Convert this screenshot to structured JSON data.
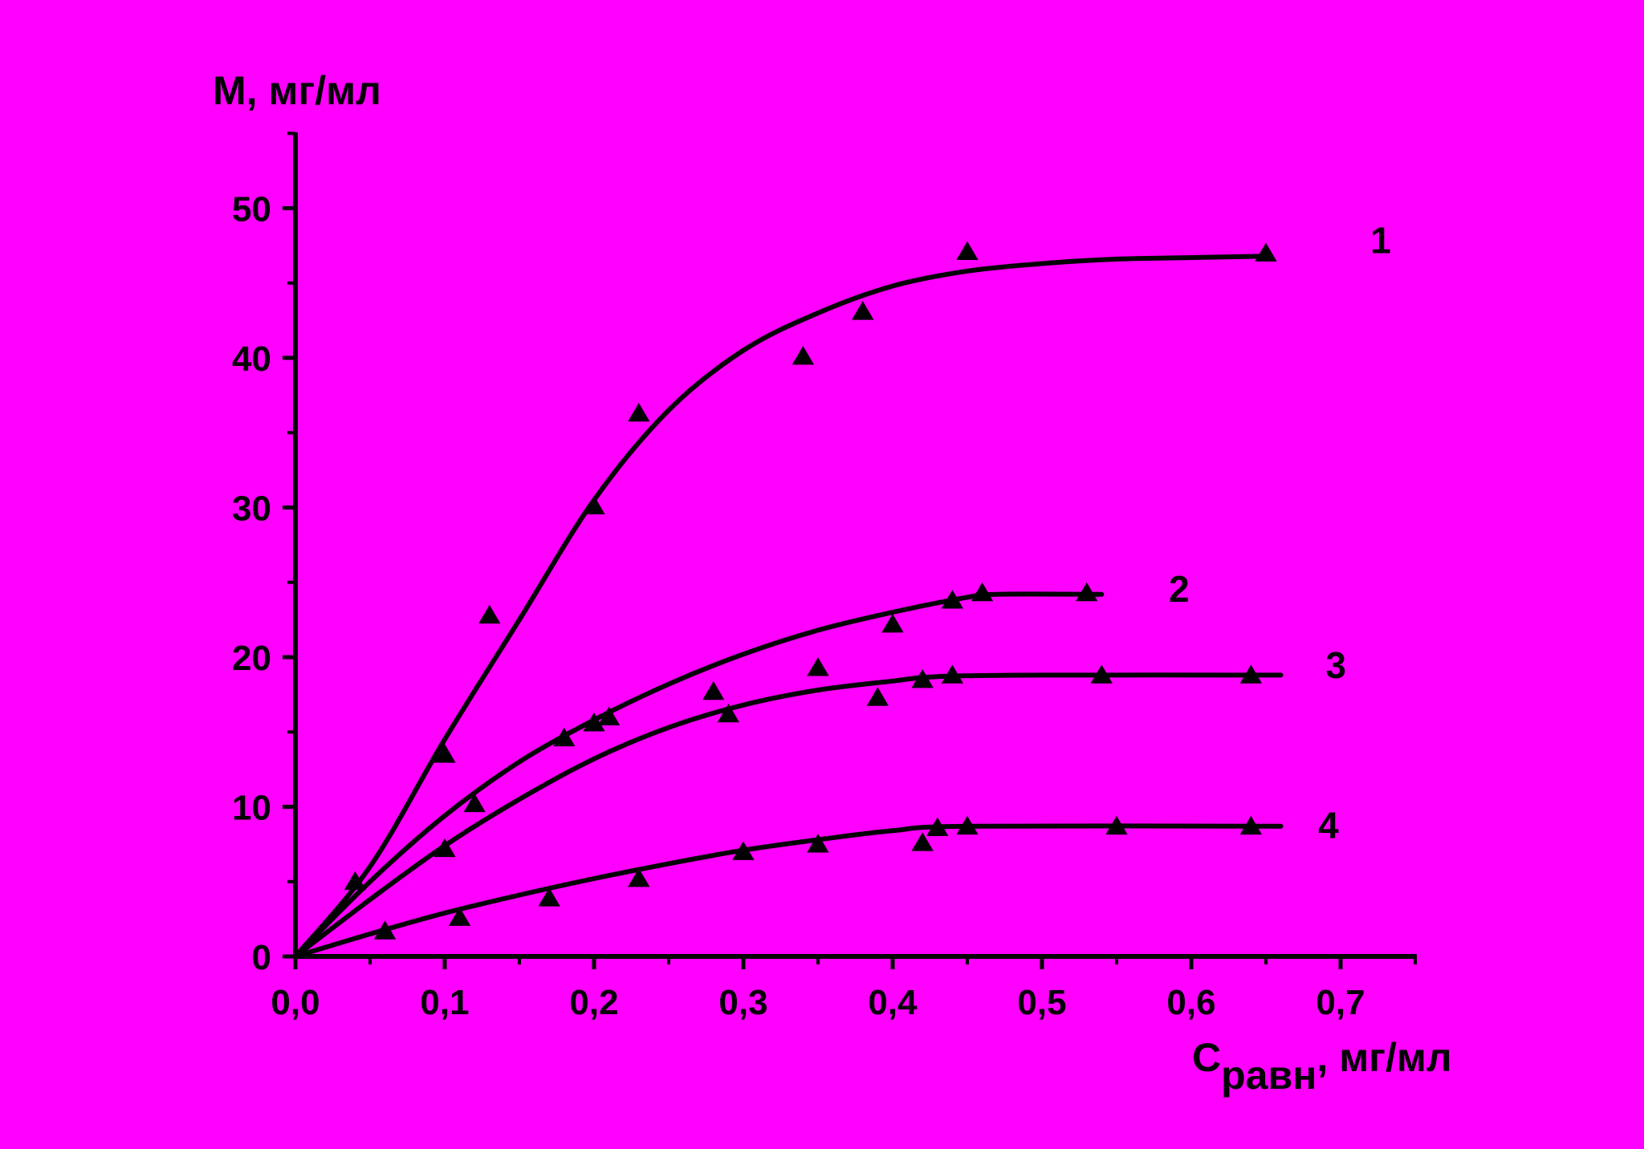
{
  "colors": {
    "background": "#FF00FF",
    "ink": "#000000"
  },
  "chart_data": {
    "type": "scatter",
    "title": "",
    "ylabel": "M, мг/мл",
    "xlabel": {
      "main": "C",
      "subscript": "равн",
      "suffix": ", мг/мл"
    },
    "xlim": [
      0,
      0.75
    ],
    "ylim": [
      0,
      55
    ],
    "x_ticks": [
      {
        "value": 0.0,
        "label": "0,0"
      },
      {
        "value": 0.1,
        "label": "0,1"
      },
      {
        "value": 0.2,
        "label": "0,2"
      },
      {
        "value": 0.3,
        "label": "0,3"
      },
      {
        "value": 0.4,
        "label": "0,4"
      },
      {
        "value": 0.5,
        "label": "0,5"
      },
      {
        "value": 0.6,
        "label": "0,6"
      },
      {
        "value": 0.7,
        "label": "0,7"
      }
    ],
    "y_ticks": [
      {
        "value": 0,
        "label": "0"
      },
      {
        "value": 10,
        "label": "10"
      },
      {
        "value": 20,
        "label": "20"
      },
      {
        "value": 30,
        "label": "30"
      },
      {
        "value": 40,
        "label": "40"
      },
      {
        "value": 50,
        "label": "50"
      }
    ],
    "grid": false,
    "legend": "none",
    "marker": "triangle-up",
    "series": [
      {
        "name": "1",
        "points": [
          [
            0.04,
            5.0
          ],
          [
            0.1,
            13.5
          ],
          [
            0.13,
            22.8
          ],
          [
            0.2,
            30.1
          ],
          [
            0.23,
            36.3
          ],
          [
            0.34,
            40.1
          ],
          [
            0.38,
            43.1
          ],
          [
            0.45,
            47.1
          ],
          [
            0.65,
            47.0
          ]
        ],
        "curve": [
          [
            0.0,
            0.0
          ],
          [
            0.05,
            6.0
          ],
          [
            0.1,
            14.5
          ],
          [
            0.15,
            22.5
          ],
          [
            0.2,
            30.5
          ],
          [
            0.25,
            36.5
          ],
          [
            0.3,
            40.5
          ],
          [
            0.35,
            43.0
          ],
          [
            0.4,
            44.8
          ],
          [
            0.45,
            45.8
          ],
          [
            0.5,
            46.3
          ],
          [
            0.55,
            46.6
          ],
          [
            0.6,
            46.7
          ],
          [
            0.65,
            46.8
          ]
        ]
      },
      {
        "name": "2",
        "points": [
          [
            0.12,
            10.2
          ],
          [
            0.18,
            14.6
          ],
          [
            0.2,
            15.6
          ],
          [
            0.21,
            16.0
          ],
          [
            0.28,
            17.7
          ],
          [
            0.35,
            19.3
          ],
          [
            0.4,
            22.2
          ],
          [
            0.44,
            23.8
          ],
          [
            0.46,
            24.3
          ],
          [
            0.53,
            24.3
          ]
        ],
        "curve": [
          [
            0.0,
            0.0
          ],
          [
            0.05,
            5.0
          ],
          [
            0.1,
            9.4
          ],
          [
            0.15,
            13.0
          ],
          [
            0.2,
            15.8
          ],
          [
            0.25,
            18.2
          ],
          [
            0.3,
            20.2
          ],
          [
            0.35,
            21.8
          ],
          [
            0.4,
            23.0
          ],
          [
            0.45,
            24.0
          ],
          [
            0.47,
            24.2
          ],
          [
            0.54,
            24.2
          ]
        ]
      },
      {
        "name": "3",
        "points": [
          [
            0.1,
            7.2
          ],
          [
            0.29,
            16.2
          ],
          [
            0.39,
            17.3
          ],
          [
            0.42,
            18.5
          ],
          [
            0.44,
            18.8
          ],
          [
            0.54,
            18.8
          ],
          [
            0.64,
            18.8
          ]
        ],
        "curve": [
          [
            0.0,
            0.0
          ],
          [
            0.05,
            3.8
          ],
          [
            0.1,
            7.4
          ],
          [
            0.15,
            10.5
          ],
          [
            0.2,
            13.2
          ],
          [
            0.25,
            15.3
          ],
          [
            0.3,
            16.8
          ],
          [
            0.35,
            17.8
          ],
          [
            0.4,
            18.4
          ],
          [
            0.43,
            18.7
          ],
          [
            0.5,
            18.8
          ],
          [
            0.66,
            18.8
          ]
        ]
      },
      {
        "name": "4",
        "points": [
          [
            0.06,
            1.7
          ],
          [
            0.11,
            2.6
          ],
          [
            0.17,
            3.9
          ],
          [
            0.23,
            5.2
          ],
          [
            0.3,
            7.0
          ],
          [
            0.35,
            7.5
          ],
          [
            0.42,
            7.6
          ],
          [
            0.43,
            8.6
          ],
          [
            0.45,
            8.7
          ],
          [
            0.55,
            8.7
          ],
          [
            0.64,
            8.7
          ]
        ],
        "curve": [
          [
            0.0,
            0.0
          ],
          [
            0.05,
            1.5
          ],
          [
            0.1,
            2.9
          ],
          [
            0.15,
            4.1
          ],
          [
            0.2,
            5.2
          ],
          [
            0.25,
            6.2
          ],
          [
            0.3,
            7.1
          ],
          [
            0.35,
            7.8
          ],
          [
            0.4,
            8.4
          ],
          [
            0.45,
            8.7
          ],
          [
            0.66,
            8.7
          ]
        ]
      }
    ]
  }
}
